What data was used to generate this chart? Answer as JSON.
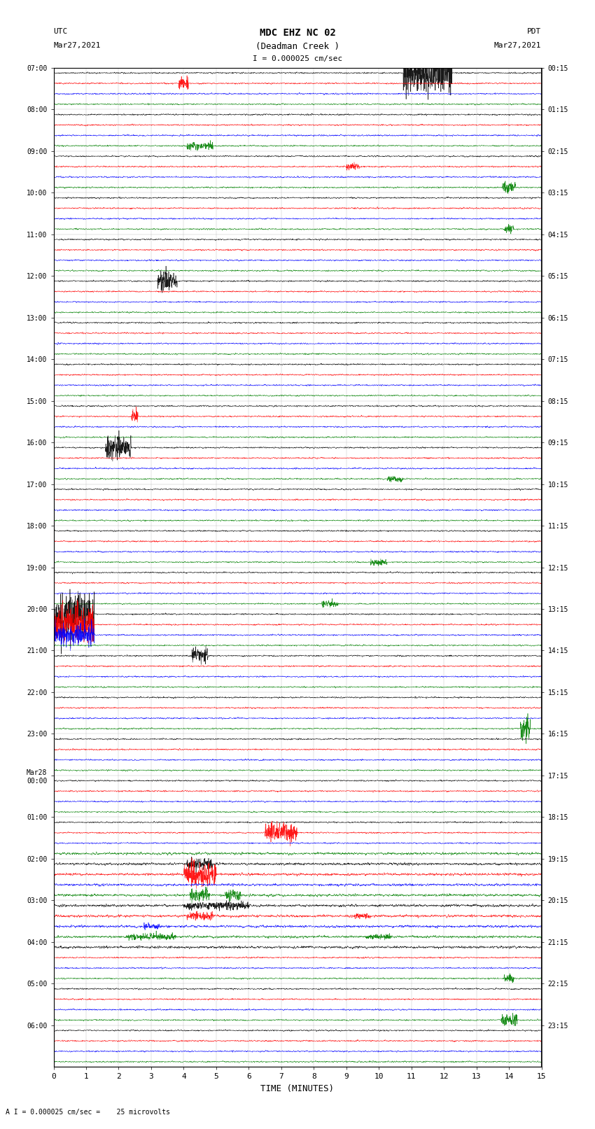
{
  "title_line1": "MDC EHZ NC 02",
  "title_line2": "(Deadman Creek )",
  "title_line3": "I = 0.000025 cm/sec",
  "left_label_top": "UTC",
  "left_label_date": "Mar27,2021",
  "right_label_top": "PDT",
  "right_label_date": "Mar27,2021",
  "xlabel": "TIME (MINUTES)",
  "bottom_label": "A I = 0.000025 cm/sec =    25 microvolts",
  "xlim": [
    0,
    15
  ],
  "xticks": [
    0,
    1,
    2,
    3,
    4,
    5,
    6,
    7,
    8,
    9,
    10,
    11,
    12,
    13,
    14,
    15
  ],
  "bg_color": "#ffffff",
  "trace_colors": [
    "black",
    "red",
    "blue",
    "green"
  ],
  "rows_per_hour": 4,
  "left_times": [
    "07:00",
    "08:00",
    "09:00",
    "10:00",
    "11:00",
    "12:00",
    "13:00",
    "14:00",
    "15:00",
    "16:00",
    "17:00",
    "18:00",
    "19:00",
    "20:00",
    "21:00",
    "22:00",
    "23:00",
    "Mar28\n00:00",
    "01:00",
    "02:00",
    "03:00",
    "04:00",
    "05:00",
    "06:00"
  ],
  "right_times": [
    "00:15",
    "01:15",
    "02:15",
    "03:15",
    "04:15",
    "05:15",
    "06:15",
    "07:15",
    "08:15",
    "09:15",
    "10:15",
    "11:15",
    "12:15",
    "13:15",
    "14:15",
    "15:15",
    "16:15",
    "17:15",
    "18:15",
    "19:15",
    "20:15",
    "21:15",
    "22:15",
    "23:15"
  ],
  "noise_amplitude": 0.15,
  "fig_width": 8.5,
  "fig_height": 16.13,
  "dpi": 100
}
